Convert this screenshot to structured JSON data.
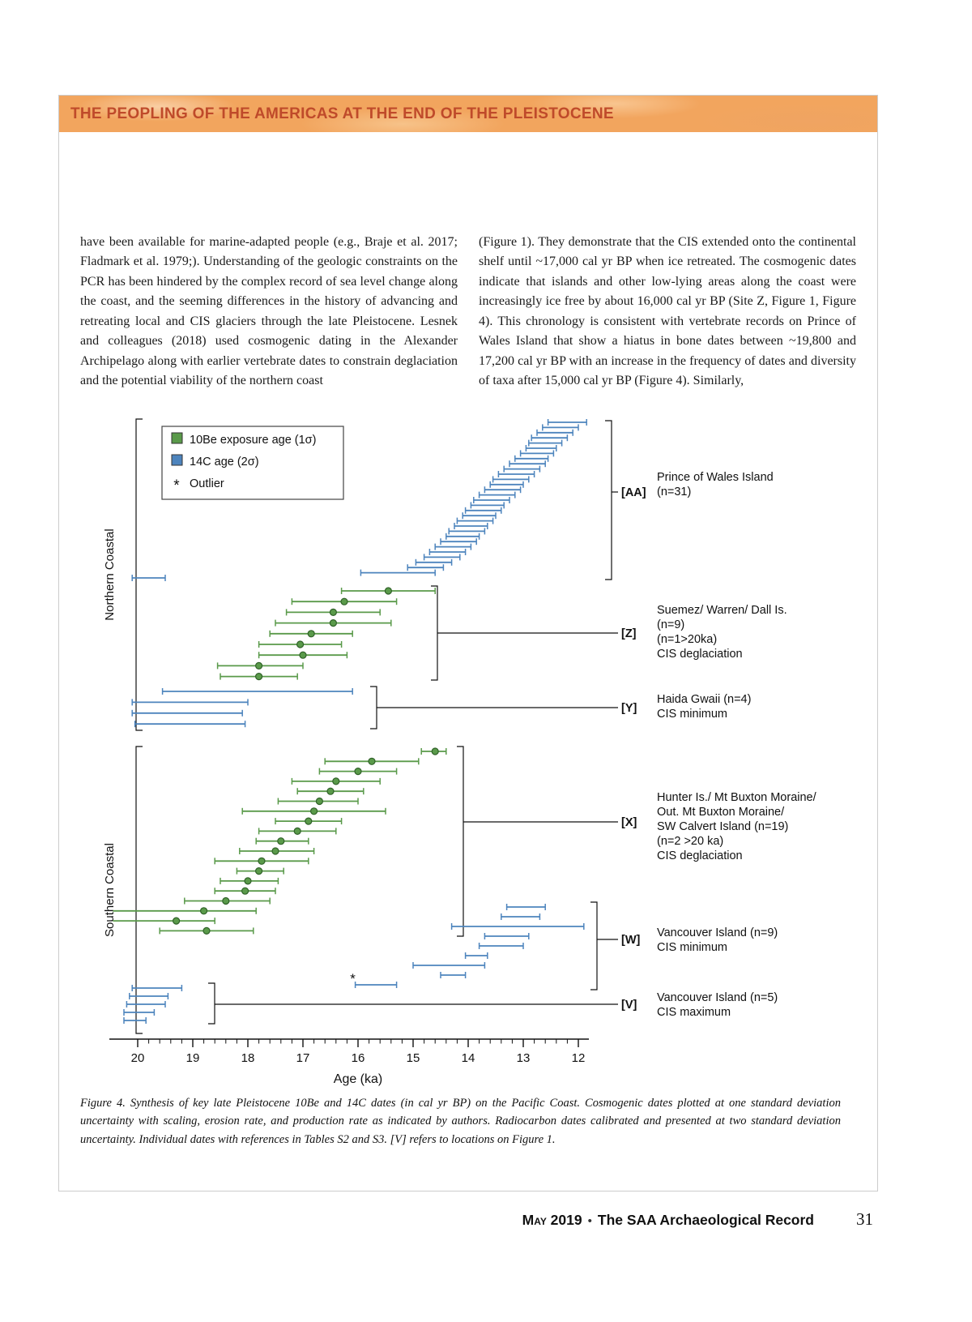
{
  "header": {
    "title": "THE PEOPLING OF THE AMERICAS AT THE END OF THE PLEISTOCENE"
  },
  "body": {
    "left_column": "have been available for marine-adapted people (e.g., Braje et al. 2017; Fladmark et al. 1979;). Understanding of the geologic constraints on the PCR has been hindered by the complex record of sea level change along the coast, and the seeming differences in the history of advancing and retreating local and CIS glaciers through the late Pleistocene. Lesnek and colleagues (2018) used cosmogenic dating in the Alexander Archipelago along with earlier vertebrate dates to constrain deglaciation and the potential viability of the northern coast",
    "right_column": "(Figure 1). They demonstrate that the CIS extended onto the continental shelf until ~17,000 cal yr BP when ice retreated. The cosmogenic dates indicate that islands and other low-lying areas along the coast were increasingly ice free by about 16,000 cal yr BP (Site Z, Figure 1, Figure 4). This chronology is consistent with vertebrate records on Prince of Wales Island that show a hiatus in bone dates between ~19,800 and 17,200 cal yr BP with an increase in the frequency of dates and diversity of taxa after 15,000 cal yr BP (Figure 4). Similarly,"
  },
  "figure": {
    "caption": "Figure 4. Synthesis of key late Pleistocene 10Be and 14C dates (in cal yr BP) on the Pacific Coast. Cosmogenic dates plotted at one standard deviation uncertainty with scaling, erosion rate, and production rate as indicated by authors. Radiocarbon dates calibrated and presented at two standard deviation uncertainty. Individual dates with references in Tables S2 and S3. [V] refers to locations on Figure 1."
  },
  "footer": {
    "issue": "May 2019",
    "separator": "•",
    "journal": "The SAA Archaeological Record",
    "page_number": "31"
  },
  "chart_data": {
    "type": "horizontal-error-bar ranges (age intervals)",
    "units": "ka (thousands of cal yr BP)",
    "x_axis": {
      "label": "Age (ka)",
      "ticks": [
        20,
        19,
        18,
        17,
        16,
        15,
        14,
        13,
        12
      ],
      "reversed": true
    },
    "grid": false,
    "colors": {
      "green": "#5a9a4a",
      "green_dark": "#2f6128",
      "blue": "#4d84bd"
    },
    "legend": [
      {
        "label": "10Be exposure age (1σ)",
        "color": "green",
        "marker": "square"
      },
      {
        "label": "14C age (2σ)",
        "color": "blue",
        "marker": "square"
      },
      {
        "label": "Outlier",
        "marker": "asterisk"
      }
    ],
    "side_labels": [
      {
        "section": "north",
        "text": "Northern Coastal"
      },
      {
        "section": "south",
        "text": "Southern Coastal"
      }
    ],
    "groups": [
      {
        "id": "AA",
        "tag": "[AA]",
        "series": "14C",
        "label_lines": [
          "Prince of Wales Island",
          "(n=31)"
        ],
        "bars": [
          [
            12.55,
            11.85
          ],
          [
            12.65,
            12.0
          ],
          [
            12.75,
            12.1
          ],
          [
            12.85,
            12.2
          ],
          [
            12.9,
            12.3
          ],
          [
            12.95,
            12.4
          ],
          [
            13.05,
            12.45
          ],
          [
            13.15,
            12.55
          ],
          [
            13.25,
            12.6
          ],
          [
            13.35,
            12.7
          ],
          [
            13.45,
            12.8
          ],
          [
            13.55,
            12.9
          ],
          [
            13.6,
            13.0
          ],
          [
            13.7,
            13.05
          ],
          [
            13.8,
            13.15
          ],
          [
            13.9,
            13.25
          ],
          [
            13.95,
            13.35
          ],
          [
            14.05,
            13.4
          ],
          [
            14.1,
            13.5
          ],
          [
            14.2,
            13.55
          ],
          [
            14.25,
            13.65
          ],
          [
            14.35,
            13.7
          ],
          [
            14.4,
            13.8
          ],
          [
            14.5,
            13.85
          ],
          [
            14.6,
            13.95
          ],
          [
            14.7,
            14.05
          ],
          [
            14.8,
            14.15
          ],
          [
            14.95,
            14.3
          ],
          [
            15.1,
            14.45
          ],
          [
            15.95,
            14.6
          ],
          [
            20.1,
            19.5
          ]
        ]
      },
      {
        "id": "Z",
        "tag": "[Z]",
        "series": "10Be",
        "label_lines": [
          "Suemez/ Warren/ Dall Is.",
          "(n=9)",
          "(n=1>20ka)",
          "CIS deglaciation"
        ],
        "bars": [
          [
            16.3,
            14.6,
            15.45
          ],
          [
            17.2,
            15.3,
            16.25
          ],
          [
            17.3,
            15.6,
            16.45
          ],
          [
            17.5,
            15.4,
            16.45
          ],
          [
            17.6,
            16.1,
            16.85
          ],
          [
            17.8,
            16.3,
            17.05
          ],
          [
            17.8,
            16.2,
            17.0
          ],
          [
            18.55,
            17.0,
            17.8
          ],
          [
            18.5,
            17.1,
            17.8
          ]
        ]
      },
      {
        "id": "Y",
        "tag": "[Y]",
        "series": "14C",
        "label_lines": [
          "Haida Gwaii (n=4)",
          "CIS minimum"
        ],
        "bars": [
          [
            19.55,
            16.1
          ],
          [
            20.1,
            18.0
          ],
          [
            20.1,
            18.1
          ],
          [
            20.05,
            18.05
          ]
        ]
      },
      {
        "id": "X",
        "tag": "[X]",
        "series": "10Be",
        "label_lines": [
          "Hunter Is./ Mt Buxton Moraine/",
          "Out. Mt Buxton Moraine/",
          "SW Calvert Island (n=19)",
          "(n=2 >20 ka)",
          "CIS deglaciation"
        ],
        "bars": [
          [
            14.85,
            14.4,
            14.6
          ],
          [
            16.6,
            14.9,
            15.75
          ],
          [
            16.7,
            15.3,
            16.0
          ],
          [
            17.2,
            15.6,
            16.4
          ],
          [
            17.1,
            15.9,
            16.5
          ],
          [
            17.45,
            16.0,
            16.7
          ],
          [
            18.1,
            15.5,
            16.8
          ],
          [
            17.5,
            16.3,
            16.9
          ],
          [
            17.8,
            16.4,
            17.1
          ],
          [
            17.85,
            16.9,
            17.4
          ],
          [
            18.15,
            16.8,
            17.5
          ],
          [
            18.6,
            16.9,
            17.75
          ],
          [
            18.2,
            17.35,
            17.8
          ],
          [
            18.5,
            17.45,
            18.0
          ],
          [
            18.6,
            17.5,
            18.05
          ],
          [
            19.15,
            17.6,
            18.4
          ],
          [
            20.45,
            17.85,
            18.8
          ],
          [
            20.45,
            18.6,
            19.3
          ],
          [
            19.6,
            17.9,
            18.75
          ]
        ]
      },
      {
        "id": "W",
        "tag": "[W]",
        "series": "14C",
        "label_lines": [
          "Vancouver Island (n=9)",
          "CIS minimum"
        ],
        "outlier_bar": 8,
        "bars": [
          [
            13.3,
            12.6
          ],
          [
            13.4,
            12.7
          ],
          [
            14.3,
            11.9
          ],
          [
            13.7,
            12.9
          ],
          [
            13.8,
            13.0
          ],
          [
            14.05,
            13.65
          ],
          [
            15.0,
            13.7
          ],
          [
            14.5,
            14.05
          ],
          [
            16.05,
            15.3
          ]
        ]
      },
      {
        "id": "V",
        "tag": "[V]",
        "series": "14C",
        "label_lines": [
          "Vancouver Island (n=5)",
          "CIS maximum"
        ],
        "bars": [
          [
            20.1,
            19.2
          ],
          [
            20.15,
            19.45
          ],
          [
            20.2,
            19.5
          ],
          [
            20.25,
            19.7
          ],
          [
            20.25,
            19.85
          ]
        ]
      }
    ]
  }
}
